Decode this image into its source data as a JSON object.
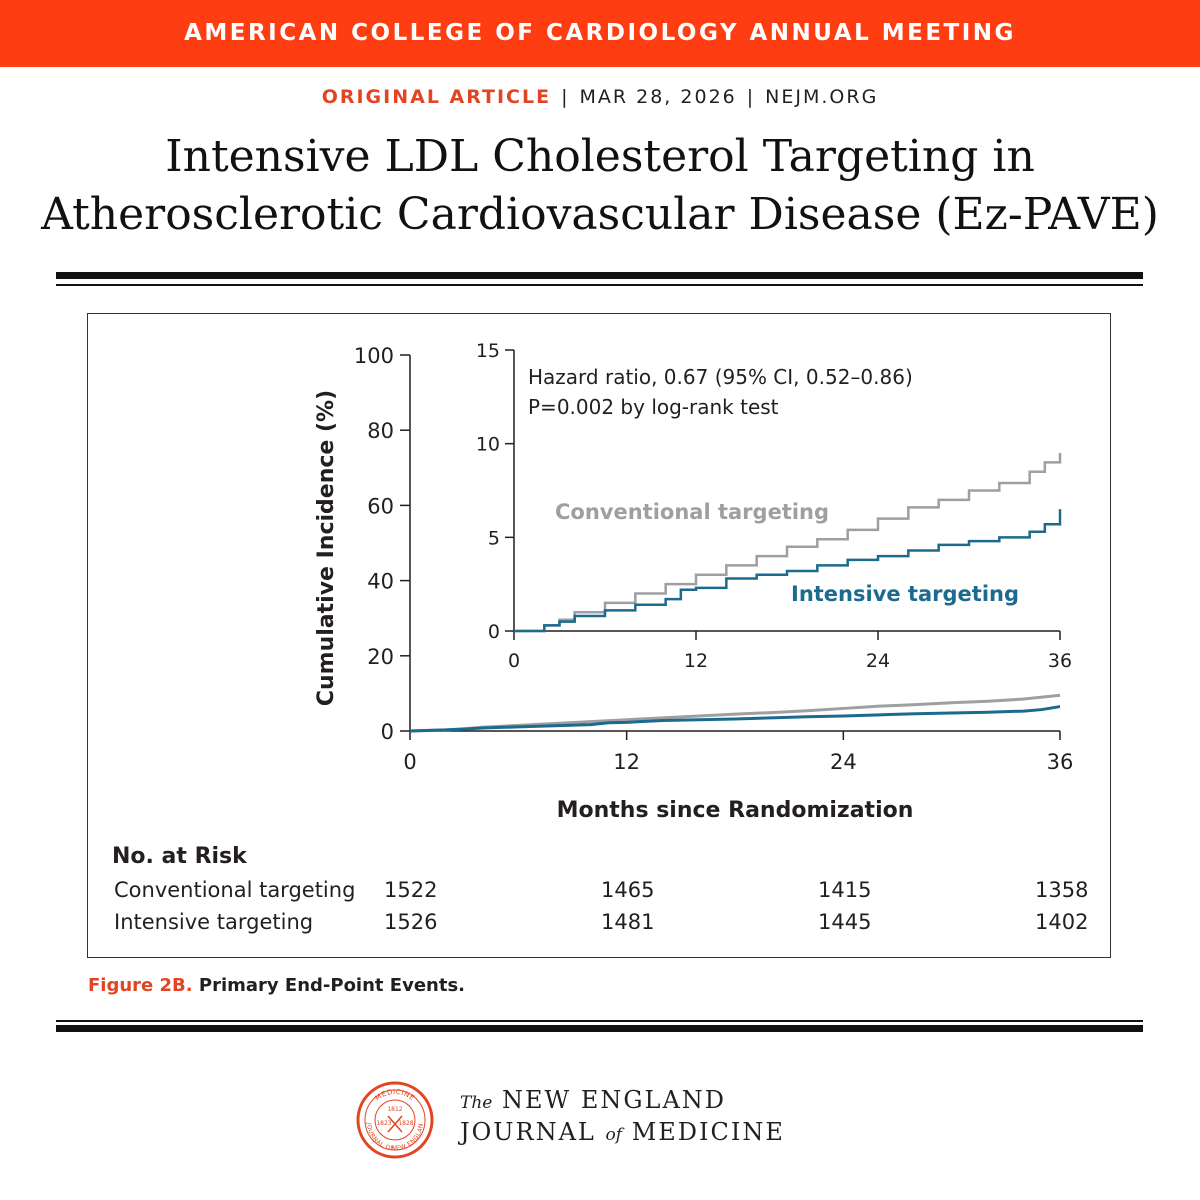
{
  "banner": "AMERICAN COLLEGE OF CARDIOLOGY ANNUAL MEETING",
  "meta": {
    "type": "ORIGINAL ARTICLE",
    "date": "MAR 28, 2026",
    "site": "NEJM.ORG"
  },
  "title": {
    "line1": "Intensive LDL Cholesterol Targeting in",
    "line2": "Atherosclerotic Cardiovascular Disease (Ez-PAVE)"
  },
  "colors": {
    "accent": "#ff3d12",
    "conventional": "#9d9fa2",
    "intensive": "#1c6a8e"
  },
  "chart_data": {
    "type": "line",
    "title": "Primary End-Point Events",
    "xlabel": "Months since Randomization",
    "ylabel": "Cumulative Incidence (%)",
    "xlim": [
      0,
      36
    ],
    "ylim": [
      0,
      100
    ],
    "xticks": [
      0,
      12,
      24,
      36
    ],
    "yticks": [
      0,
      20,
      40,
      60,
      80,
      100
    ],
    "series": [
      {
        "name": "Conventional targeting",
        "x": [
          0,
          2,
          3,
          4,
          6,
          8,
          10,
          12,
          14,
          16,
          18,
          20,
          22,
          24,
          26,
          28,
          30,
          32,
          34,
          35,
          36
        ],
        "y": [
          0,
          0.3,
          0.6,
          1.0,
          1.5,
          2.0,
          2.5,
          3.0,
          3.5,
          4.0,
          4.5,
          4.9,
          5.4,
          6.0,
          6.6,
          7.0,
          7.5,
          7.9,
          8.5,
          9.0,
          9.5
        ]
      },
      {
        "name": "Intensive targeting",
        "x": [
          0,
          2,
          3,
          4,
          6,
          8,
          10,
          11,
          12,
          14,
          16,
          18,
          20,
          22,
          24,
          26,
          28,
          30,
          32,
          34,
          35,
          36
        ],
        "y": [
          0,
          0.3,
          0.5,
          0.8,
          1.1,
          1.4,
          1.7,
          2.2,
          2.3,
          2.8,
          3.0,
          3.2,
          3.5,
          3.8,
          4.0,
          4.3,
          4.6,
          4.8,
          5.0,
          5.3,
          5.7,
          6.5
        ]
      }
    ],
    "inset": {
      "ylim": [
        0,
        15
      ],
      "yticks": [
        0,
        5,
        10,
        15
      ],
      "xticks": [
        0,
        12,
        24,
        36
      ],
      "annotation_line1": "Hazard ratio, 0.67 (95% CI, 0.52–0.86)",
      "annotation_line2": "P=0.002 by log-rank test"
    },
    "legend": [
      "Conventional targeting",
      "Intensive targeting"
    ]
  },
  "risk_table": {
    "header": "No. at Risk",
    "rows": [
      {
        "label": "Conventional targeting",
        "values": [
          "1522",
          "1465",
          "1415",
          "1358"
        ]
      },
      {
        "label": "Intensive targeting",
        "values": [
          "1526",
          "1481",
          "1445",
          "1402"
        ]
      }
    ]
  },
  "caption": {
    "label": "Figure 2B.",
    "text": "Primary End-Point Events."
  },
  "footer": {
    "the": "The",
    "line1": "NEW ENGLAND",
    "line2a": "JOURNAL",
    "of": "of",
    "line2b": "MEDICINE",
    "seal_top": "MEDICINE",
    "seal_right": "NEW ENGLAND",
    "seal_left": "JOURNAL OF",
    "seal_years": [
      "1812",
      "1823",
      "1828"
    ]
  }
}
